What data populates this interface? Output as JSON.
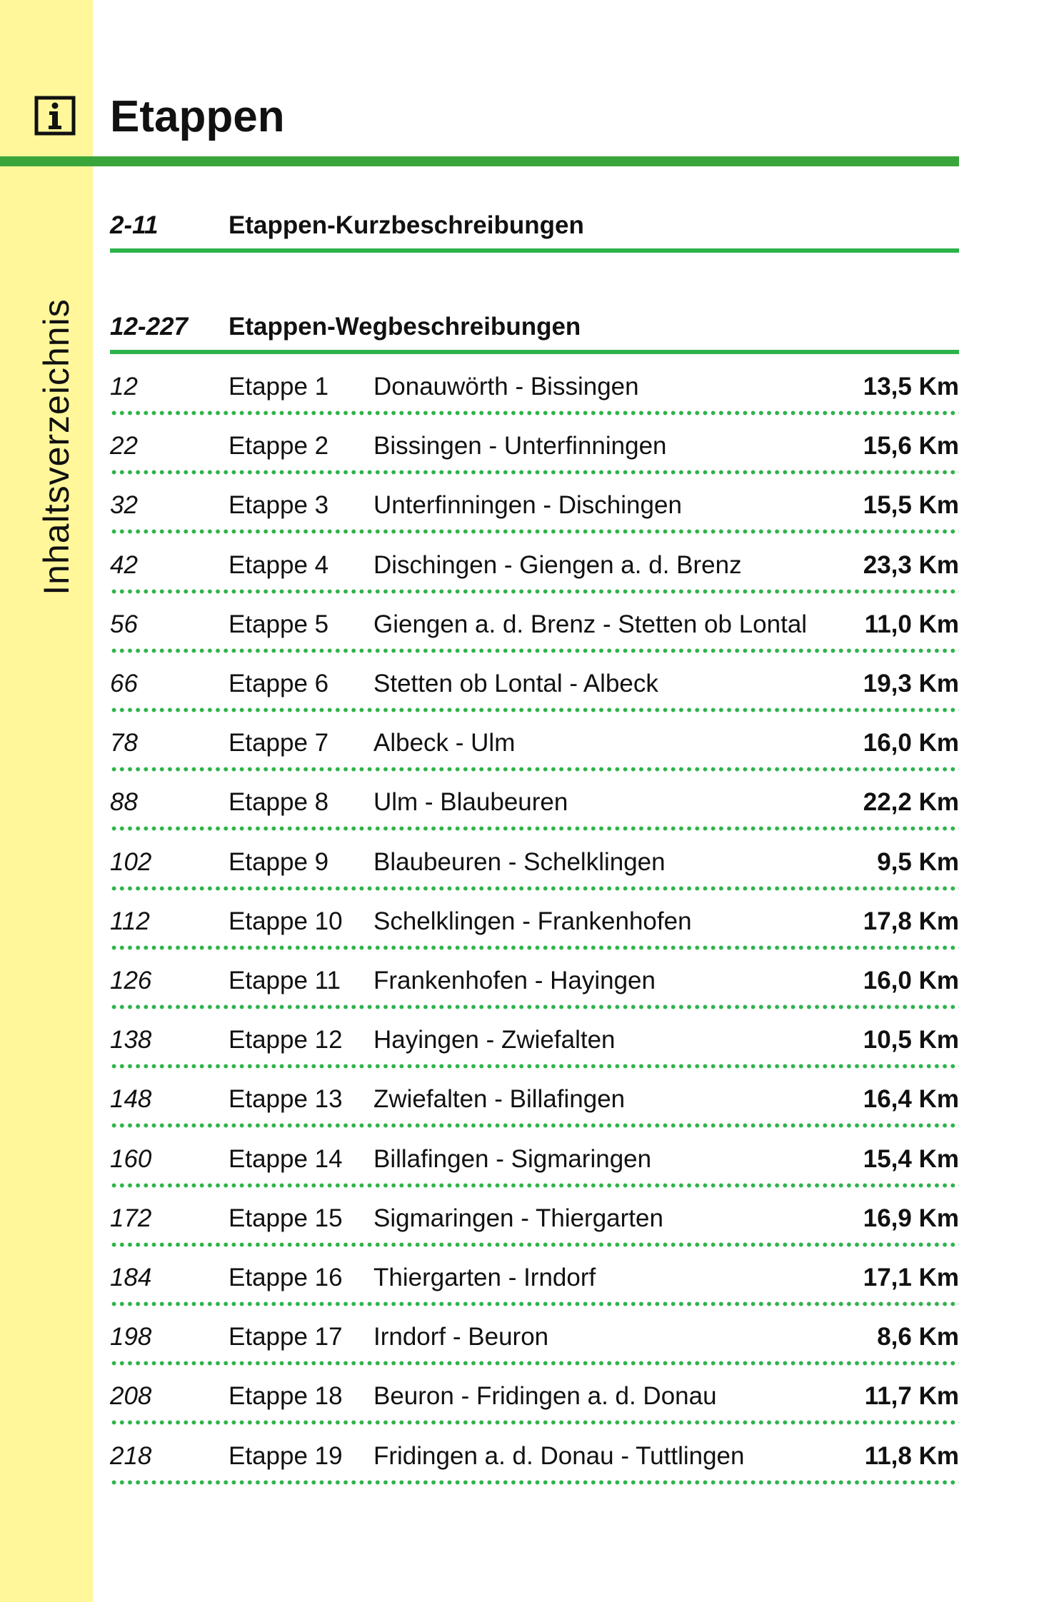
{
  "header": {
    "title": "Etappen"
  },
  "sidebar": {
    "label": "Inhaltsverzeichnis"
  },
  "sections": [
    {
      "pages": "2-11",
      "title": "Etappen-Kurzbeschreibungen"
    },
    {
      "pages": "12-227",
      "title": "Etappen-Wegbeschreibungen"
    }
  ],
  "rows": [
    {
      "page": "12",
      "stage": "Etappe 1",
      "route": "Donauwörth - Bissingen",
      "distance": "13,5 Km"
    },
    {
      "page": "22",
      "stage": "Etappe 2",
      "route": "Bissingen - Unterfinningen",
      "distance": "15,6 Km"
    },
    {
      "page": "32",
      "stage": "Etappe 3",
      "route": "Unterfinningen - Dischingen",
      "distance": "15,5 Km"
    },
    {
      "page": "42",
      "stage": "Etappe 4",
      "route": "Dischingen - Giengen a. d. Brenz",
      "distance": "23,3 Km"
    },
    {
      "page": "56",
      "stage": "Etappe 5",
      "route": "Giengen a. d. Brenz - Stetten ob Lontal",
      "distance": "11,0 Km"
    },
    {
      "page": "66",
      "stage": "Etappe 6",
      "route": "Stetten ob Lontal - Albeck",
      "distance": "19,3 Km"
    },
    {
      "page": "78",
      "stage": "Etappe 7",
      "route": "Albeck - Ulm",
      "distance": "16,0 Km"
    },
    {
      "page": "88",
      "stage": "Etappe 8",
      "route": "Ulm - Blaubeuren",
      "distance": "22,2 Km"
    },
    {
      "page": "102",
      "stage": "Etappe 9",
      "route": "Blaubeuren - Schelklingen",
      "distance": "9,5 Km"
    },
    {
      "page": "112",
      "stage": "Etappe 10",
      "route": "Schelklingen - Frankenhofen",
      "distance": "17,8 Km"
    },
    {
      "page": "126",
      "stage": "Etappe 11",
      "route": "Frankenhofen - Hayingen",
      "distance": "16,0 Km"
    },
    {
      "page": "138",
      "stage": "Etappe 12",
      "route": "Hayingen - Zwiefalten",
      "distance": "10,5 Km"
    },
    {
      "page": "148",
      "stage": "Etappe 13",
      "route": "Zwiefalten - Billafingen",
      "distance": "16,4 Km"
    },
    {
      "page": "160",
      "stage": "Etappe 14",
      "route": "Billafingen - Sigmaringen",
      "distance": "15,4 Km"
    },
    {
      "page": "172",
      "stage": "Etappe 15",
      "route": "Sigmaringen - Thiergarten",
      "distance": "16,9 Km"
    },
    {
      "page": "184",
      "stage": "Etappe 16",
      "route": "Thiergarten - Irndorf",
      "distance": "17,1 Km"
    },
    {
      "page": "198",
      "stage": "Etappe 17",
      "route": "Irndorf - Beuron",
      "distance": "8,6 Km"
    },
    {
      "page": "208",
      "stage": "Etappe 18",
      "route": "Beuron - Fridingen a. d. Donau",
      "distance": "11,7 Km"
    },
    {
      "page": "218",
      "stage": "Etappe 19",
      "route": "Fridingen a. d. Donau - Tuttlingen",
      "distance": "11,8 Km"
    }
  ]
}
